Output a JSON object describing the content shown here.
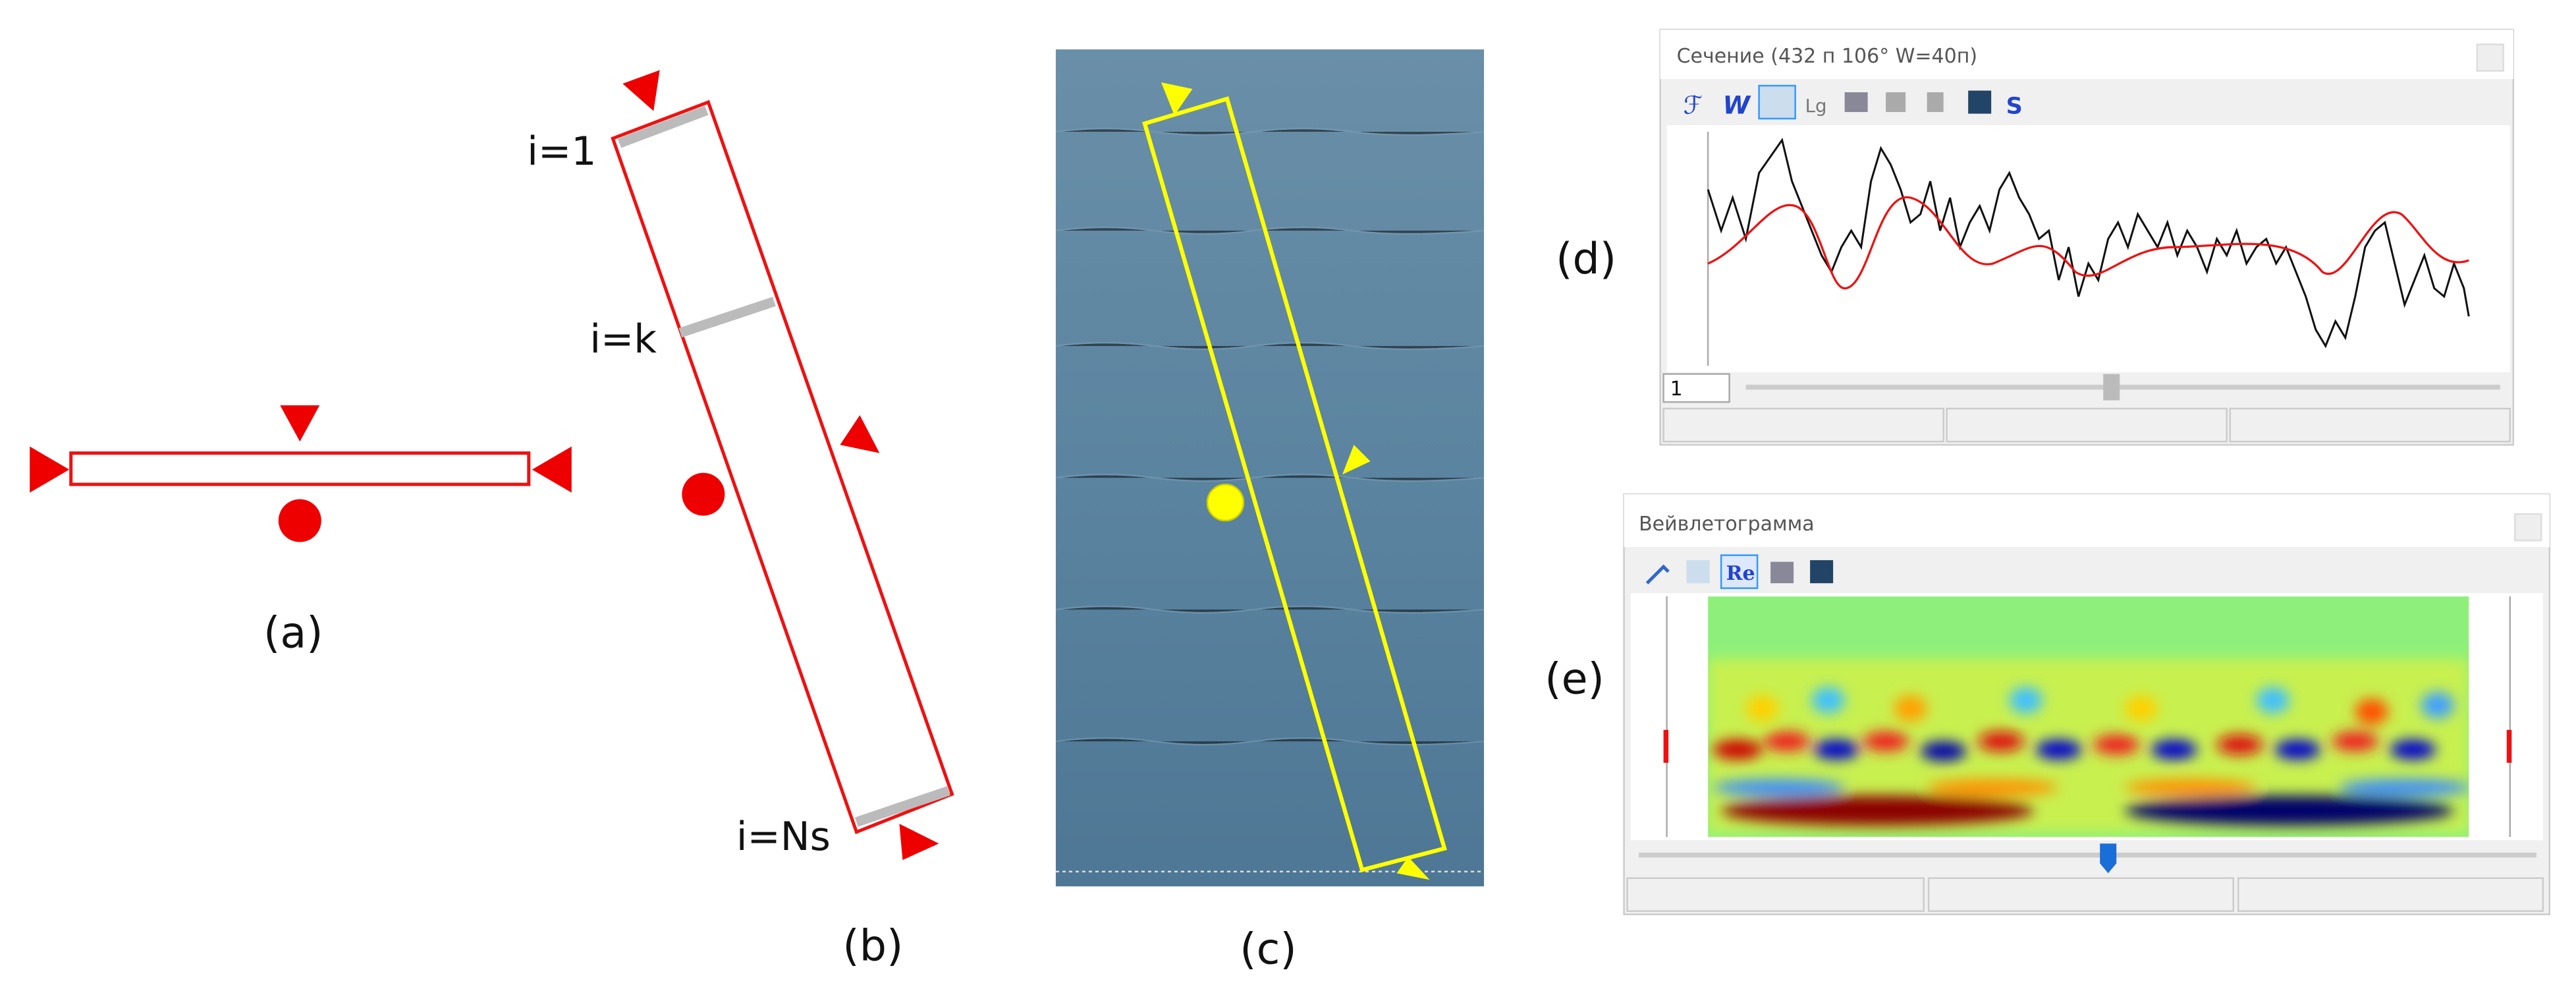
{
  "panels": [
    {
      "label": "(a)"
    },
    {
      "label": "(b)",
      "annotations": [
        "i=1",
        "i=k",
        "i=Ns"
      ]
    },
    {
      "label": "(c)"
    },
    {
      "label": "(d)",
      "window": {
        "title": "Сечение (432 п 106° W=40п)",
        "toolbar": [
          "Lg"
        ],
        "spinner": "1"
      }
    },
    {
      "label": "(e)",
      "window": {
        "title": "Вейвлетограмма",
        "toolbar": [
          "Re"
        ]
      }
    }
  ]
}
